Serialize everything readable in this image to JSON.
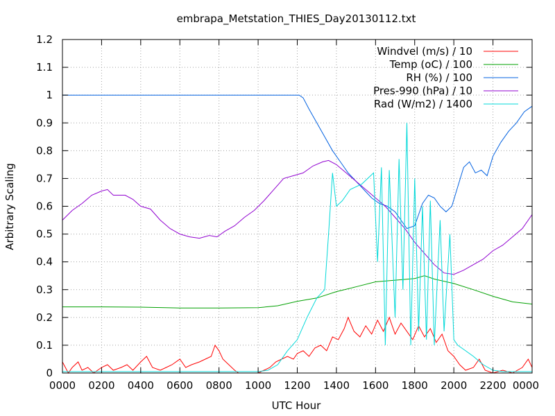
{
  "chart_data": {
    "type": "line",
    "title": "embrapa_Metstation_THIES_Day20130112.txt",
    "xlabel": "UTC Hour",
    "ylabel": "Arbitrary Scaling",
    "xlim": [
      0,
      24
    ],
    "ylim": [
      0,
      1.2
    ],
    "grid": true,
    "legend_position": "top-right",
    "x_tick_labels": [
      "0000",
      "0200",
      "0400",
      "0600",
      "0800",
      "1000",
      "1200",
      "1400",
      "1600",
      "1800",
      "2000",
      "2200",
      "0000"
    ],
    "y_tick_labels": [
      "0",
      "0.1",
      "0.2",
      "0.3",
      "0.4",
      "0.5",
      "0.6",
      "0.7",
      "0.8",
      "0.9",
      "1",
      "1.1",
      "1.2"
    ],
    "series": [
      {
        "name": "Windvel (m/s) / 10",
        "color": "#ff0000",
        "points": [
          [
            0,
            0.04
          ],
          [
            0.3,
            0.0
          ],
          [
            0.5,
            0.02
          ],
          [
            0.8,
            0.04
          ],
          [
            1.0,
            0.01
          ],
          [
            1.3,
            0.02
          ],
          [
            1.6,
            0.0
          ],
          [
            2.0,
            0.02
          ],
          [
            2.3,
            0.03
          ],
          [
            2.6,
            0.01
          ],
          [
            3.0,
            0.02
          ],
          [
            3.3,
            0.03
          ],
          [
            3.6,
            0.01
          ],
          [
            4.0,
            0.04
          ],
          [
            4.3,
            0.06
          ],
          [
            4.6,
            0.02
          ],
          [
            5.0,
            0.01
          ],
          [
            5.3,
            0.02
          ],
          [
            5.6,
            0.03
          ],
          [
            6.0,
            0.05
          ],
          [
            6.3,
            0.02
          ],
          [
            6.6,
            0.03
          ],
          [
            7.0,
            0.04
          ],
          [
            7.3,
            0.05
          ],
          [
            7.6,
            0.06
          ],
          [
            7.8,
            0.1
          ],
          [
            8.0,
            0.08
          ],
          [
            8.2,
            0.05
          ],
          [
            8.5,
            0.03
          ],
          [
            8.8,
            0.01
          ],
          [
            9.0,
            0.0
          ],
          [
            9.5,
            0.0
          ],
          [
            10.0,
            0.0
          ],
          [
            10.3,
            0.01
          ],
          [
            10.6,
            0.02
          ],
          [
            10.9,
            0.04
          ],
          [
            11.2,
            0.05
          ],
          [
            11.5,
            0.06
          ],
          [
            11.8,
            0.05
          ],
          [
            12.0,
            0.07
          ],
          [
            12.3,
            0.08
          ],
          [
            12.6,
            0.06
          ],
          [
            12.9,
            0.09
          ],
          [
            13.2,
            0.1
          ],
          [
            13.5,
            0.08
          ],
          [
            13.8,
            0.13
          ],
          [
            14.1,
            0.12
          ],
          [
            14.4,
            0.16
          ],
          [
            14.6,
            0.2
          ],
          [
            14.9,
            0.15
          ],
          [
            15.2,
            0.13
          ],
          [
            15.5,
            0.17
          ],
          [
            15.8,
            0.14
          ],
          [
            16.1,
            0.19
          ],
          [
            16.4,
            0.15
          ],
          [
            16.7,
            0.2
          ],
          [
            17.0,
            0.14
          ],
          [
            17.3,
            0.18
          ],
          [
            17.6,
            0.15
          ],
          [
            17.9,
            0.12
          ],
          [
            18.2,
            0.17
          ],
          [
            18.5,
            0.13
          ],
          [
            18.8,
            0.16
          ],
          [
            19.1,
            0.11
          ],
          [
            19.4,
            0.14
          ],
          [
            19.7,
            0.08
          ],
          [
            20.0,
            0.06
          ],
          [
            20.3,
            0.03
          ],
          [
            20.6,
            0.01
          ],
          [
            21.0,
            0.02
          ],
          [
            21.3,
            0.05
          ],
          [
            21.6,
            0.01
          ],
          [
            22.0,
            0.0
          ],
          [
            22.5,
            0.01
          ],
          [
            23.0,
            0.0
          ],
          [
            23.5,
            0.02
          ],
          [
            23.8,
            0.05
          ],
          [
            24.0,
            0.02
          ]
        ]
      },
      {
        "name": "Temp (oC) / 100",
        "color": "#00a000",
        "points": [
          [
            0,
            0.238
          ],
          [
            2,
            0.238
          ],
          [
            4,
            0.237
          ],
          [
            6,
            0.234
          ],
          [
            8,
            0.234
          ],
          [
            10,
            0.235
          ],
          [
            11,
            0.242
          ],
          [
            12,
            0.258
          ],
          [
            13,
            0.27
          ],
          [
            14,
            0.293
          ],
          [
            15,
            0.31
          ],
          [
            16,
            0.328
          ],
          [
            17,
            0.334
          ],
          [
            18,
            0.34
          ],
          [
            18.5,
            0.35
          ],
          [
            19,
            0.338
          ],
          [
            20,
            0.322
          ],
          [
            21,
            0.3
          ],
          [
            22,
            0.276
          ],
          [
            23,
            0.256
          ],
          [
            24,
            0.248
          ]
        ]
      },
      {
        "name": "RH (%) / 100",
        "color": "#0060e0",
        "points": [
          [
            0,
            1.0
          ],
          [
            12.1,
            1.0
          ],
          [
            12.3,
            0.99
          ],
          [
            12.6,
            0.95
          ],
          [
            13.0,
            0.9
          ],
          [
            13.4,
            0.85
          ],
          [
            13.8,
            0.8
          ],
          [
            14.2,
            0.76
          ],
          [
            14.6,
            0.72
          ],
          [
            15.0,
            0.69
          ],
          [
            15.4,
            0.66
          ],
          [
            15.8,
            0.63
          ],
          [
            16.2,
            0.61
          ],
          [
            16.6,
            0.6
          ],
          [
            17.0,
            0.58
          ],
          [
            17.3,
            0.55
          ],
          [
            17.6,
            0.52
          ],
          [
            18.0,
            0.53
          ],
          [
            18.4,
            0.61
          ],
          [
            18.7,
            0.64
          ],
          [
            19.0,
            0.63
          ],
          [
            19.3,
            0.6
          ],
          [
            19.6,
            0.58
          ],
          [
            19.9,
            0.6
          ],
          [
            20.2,
            0.67
          ],
          [
            20.5,
            0.74
          ],
          [
            20.8,
            0.76
          ],
          [
            21.1,
            0.72
          ],
          [
            21.4,
            0.73
          ],
          [
            21.7,
            0.71
          ],
          [
            22.0,
            0.78
          ],
          [
            22.4,
            0.83
          ],
          [
            22.8,
            0.87
          ],
          [
            23.2,
            0.9
          ],
          [
            23.6,
            0.94
          ],
          [
            24.0,
            0.96
          ]
        ]
      },
      {
        "name": "Pres-990 (hPa) / 10",
        "color": "#9000d0",
        "points": [
          [
            0,
            0.55
          ],
          [
            0.5,
            0.585
          ],
          [
            1.0,
            0.61
          ],
          [
            1.5,
            0.64
          ],
          [
            2.0,
            0.655
          ],
          [
            2.3,
            0.66
          ],
          [
            2.6,
            0.64
          ],
          [
            3.2,
            0.64
          ],
          [
            3.6,
            0.625
          ],
          [
            4.0,
            0.6
          ],
          [
            4.5,
            0.59
          ],
          [
            5.0,
            0.55
          ],
          [
            5.5,
            0.52
          ],
          [
            6.0,
            0.5
          ],
          [
            6.5,
            0.49
          ],
          [
            7.0,
            0.485
          ],
          [
            7.5,
            0.495
          ],
          [
            7.9,
            0.49
          ],
          [
            8.3,
            0.51
          ],
          [
            8.8,
            0.53
          ],
          [
            9.3,
            0.56
          ],
          [
            9.8,
            0.585
          ],
          [
            10.3,
            0.62
          ],
          [
            10.8,
            0.66
          ],
          [
            11.3,
            0.7
          ],
          [
            11.8,
            0.71
          ],
          [
            12.3,
            0.72
          ],
          [
            12.8,
            0.745
          ],
          [
            13.3,
            0.76
          ],
          [
            13.6,
            0.765
          ],
          [
            14.0,
            0.75
          ],
          [
            14.5,
            0.72
          ],
          [
            15.0,
            0.69
          ],
          [
            15.5,
            0.66
          ],
          [
            16.0,
            0.63
          ],
          [
            16.5,
            0.6
          ],
          [
            17.0,
            0.56
          ],
          [
            17.5,
            0.52
          ],
          [
            18.0,
            0.47
          ],
          [
            18.5,
            0.43
          ],
          [
            19.0,
            0.39
          ],
          [
            19.5,
            0.36
          ],
          [
            20.0,
            0.355
          ],
          [
            20.5,
            0.37
          ],
          [
            21.0,
            0.39
          ],
          [
            21.5,
            0.41
          ],
          [
            22.0,
            0.44
          ],
          [
            22.5,
            0.46
          ],
          [
            23.0,
            0.49
          ],
          [
            23.5,
            0.52
          ],
          [
            24.0,
            0.57
          ]
        ]
      },
      {
        "name": "Rad (W/m2) / 1400",
        "color": "#00d8d8",
        "points": [
          [
            0,
            0.005
          ],
          [
            10.0,
            0.005
          ],
          [
            10.5,
            0.01
          ],
          [
            11.0,
            0.03
          ],
          [
            11.5,
            0.08
          ],
          [
            12.0,
            0.12
          ],
          [
            12.5,
            0.2
          ],
          [
            13.0,
            0.27
          ],
          [
            13.4,
            0.3
          ],
          [
            13.6,
            0.5
          ],
          [
            13.8,
            0.72
          ],
          [
            14.0,
            0.6
          ],
          [
            14.3,
            0.62
          ],
          [
            14.7,
            0.66
          ],
          [
            15.0,
            0.67
          ],
          [
            15.3,
            0.68
          ],
          [
            15.6,
            0.7
          ],
          [
            15.9,
            0.72
          ],
          [
            16.1,
            0.4
          ],
          [
            16.3,
            0.74
          ],
          [
            16.5,
            0.1
          ],
          [
            16.7,
            0.73
          ],
          [
            17.0,
            0.2
          ],
          [
            17.2,
            0.77
          ],
          [
            17.4,
            0.3
          ],
          [
            17.6,
            0.9
          ],
          [
            17.8,
            0.1
          ],
          [
            18.0,
            0.7
          ],
          [
            18.2,
            0.15
          ],
          [
            18.4,
            0.6
          ],
          [
            18.6,
            0.12
          ],
          [
            18.8,
            0.62
          ],
          [
            19.0,
            0.1
          ],
          [
            19.3,
            0.55
          ],
          [
            19.5,
            0.15
          ],
          [
            19.8,
            0.5
          ],
          [
            20.0,
            0.12
          ],
          [
            20.2,
            0.1
          ],
          [
            20.6,
            0.08
          ],
          [
            21.0,
            0.06
          ],
          [
            21.5,
            0.03
          ],
          [
            22.0,
            0.01
          ],
          [
            22.5,
            0.005
          ],
          [
            24.0,
            0.005
          ]
        ]
      }
    ]
  }
}
